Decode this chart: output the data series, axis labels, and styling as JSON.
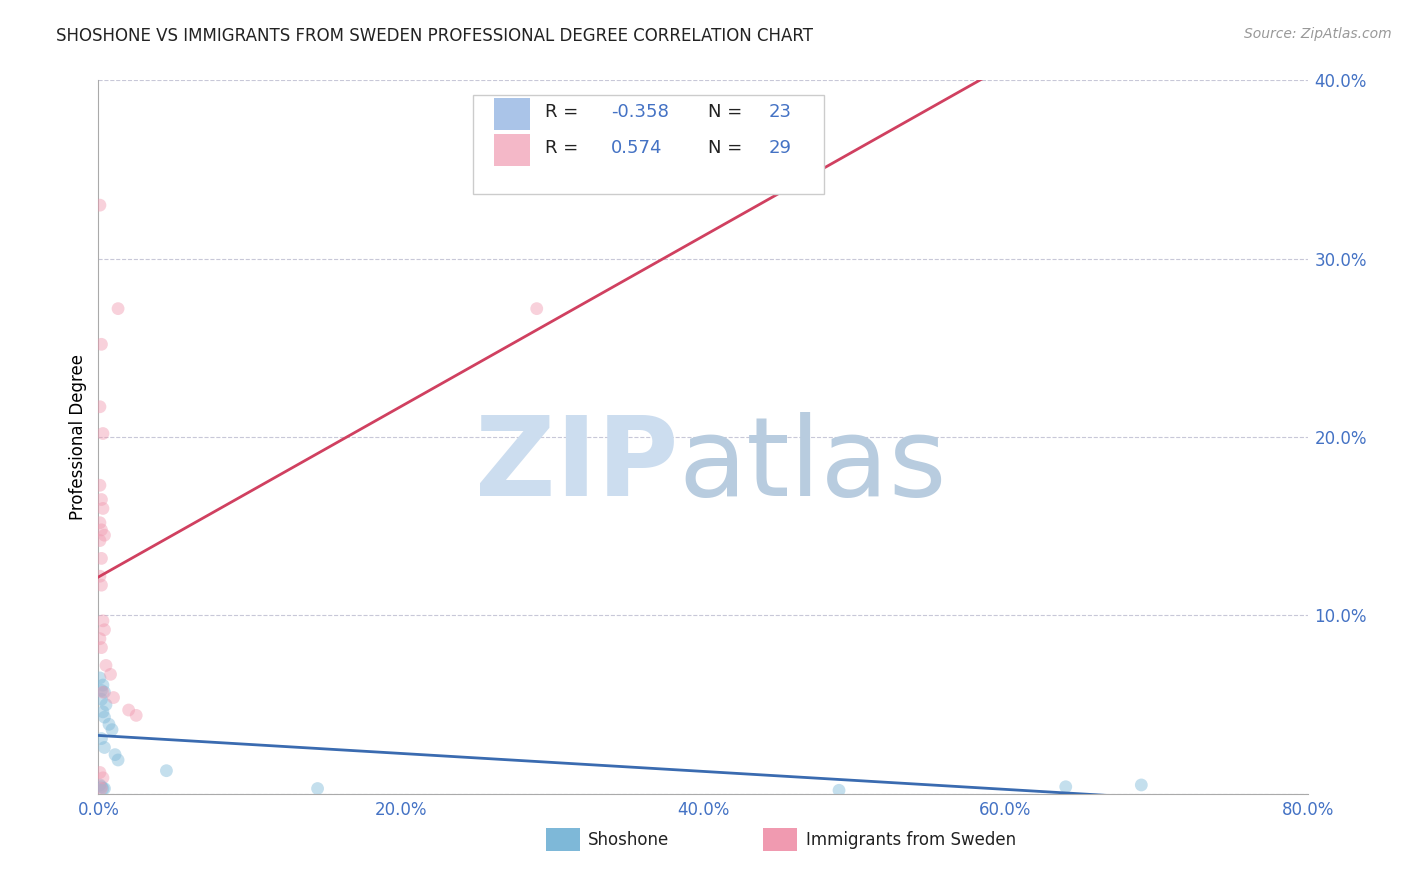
{
  "title": "SHOSHONE VS IMMIGRANTS FROM SWEDEN PROFESSIONAL DEGREE CORRELATION CHART",
  "source": "Source: ZipAtlas.com",
  "ylabel": "Professional Degree",
  "xlim": [
    0,
    0.8
  ],
  "ylim": [
    0,
    0.4
  ],
  "xticks": [
    0.0,
    0.2,
    0.4,
    0.6,
    0.8
  ],
  "xtick_labels": [
    "0.0%",
    "20.0%",
    "40.0%",
    "60.0%",
    "80.0%"
  ],
  "yticks": [
    0.1,
    0.2,
    0.3,
    0.4
  ],
  "ytick_labels": [
    "10.0%",
    "20.0%",
    "30.0%",
    "40.0%"
  ],
  "background_color": "#ffffff",
  "shoshone_points": [
    [
      0.001,
      0.065
    ],
    [
      0.002,
      0.058
    ],
    [
      0.003,
      0.061
    ],
    [
      0.004,
      0.057
    ],
    [
      0.002,
      0.053
    ],
    [
      0.005,
      0.05
    ],
    [
      0.003,
      0.046
    ],
    [
      0.004,
      0.043
    ],
    [
      0.007,
      0.039
    ],
    [
      0.009,
      0.036
    ],
    [
      0.002,
      0.031
    ],
    [
      0.004,
      0.026
    ],
    [
      0.011,
      0.022
    ],
    [
      0.013,
      0.019
    ],
    [
      0.045,
      0.013
    ],
    [
      0.001,
      0.005
    ],
    [
      0.002,
      0.004
    ],
    [
      0.003,
      0.003
    ],
    [
      0.004,
      0.003
    ],
    [
      0.145,
      0.003
    ],
    [
      0.49,
      0.002
    ],
    [
      0.64,
      0.004
    ],
    [
      0.69,
      0.005
    ]
  ],
  "sweden_points": [
    [
      0.001,
      0.33
    ],
    [
      0.013,
      0.272
    ],
    [
      0.002,
      0.252
    ],
    [
      0.001,
      0.217
    ],
    [
      0.003,
      0.202
    ],
    [
      0.001,
      0.173
    ],
    [
      0.002,
      0.165
    ],
    [
      0.003,
      0.16
    ],
    [
      0.001,
      0.152
    ],
    [
      0.002,
      0.148
    ],
    [
      0.004,
      0.145
    ],
    [
      0.001,
      0.142
    ],
    [
      0.002,
      0.132
    ],
    [
      0.001,
      0.122
    ],
    [
      0.002,
      0.117
    ],
    [
      0.003,
      0.097
    ],
    [
      0.004,
      0.092
    ],
    [
      0.001,
      0.087
    ],
    [
      0.002,
      0.082
    ],
    [
      0.005,
      0.072
    ],
    [
      0.008,
      0.067
    ],
    [
      0.003,
      0.057
    ],
    [
      0.01,
      0.054
    ],
    [
      0.02,
      0.047
    ],
    [
      0.025,
      0.044
    ],
    [
      0.001,
      0.012
    ],
    [
      0.003,
      0.009
    ],
    [
      0.29,
      0.272
    ],
    [
      0.002,
      0.003
    ]
  ],
  "shoshone_color": "#7eb8d8",
  "sweden_color": "#f09ab0",
  "shoshone_line_color": "#3a6bb0",
  "sweden_line_color": "#d04060",
  "marker_size": 85,
  "marker_alpha": 0.45,
  "grid_color": "#c8c8d8",
  "axis_color": "#5080c0",
  "tick_color": "#4472c4",
  "legend_blue_color": "#aac4e8",
  "legend_pink_color": "#f4b8c8",
  "watermark_zip_color": "#ccddef",
  "watermark_atlas_color": "#b8ccdf"
}
